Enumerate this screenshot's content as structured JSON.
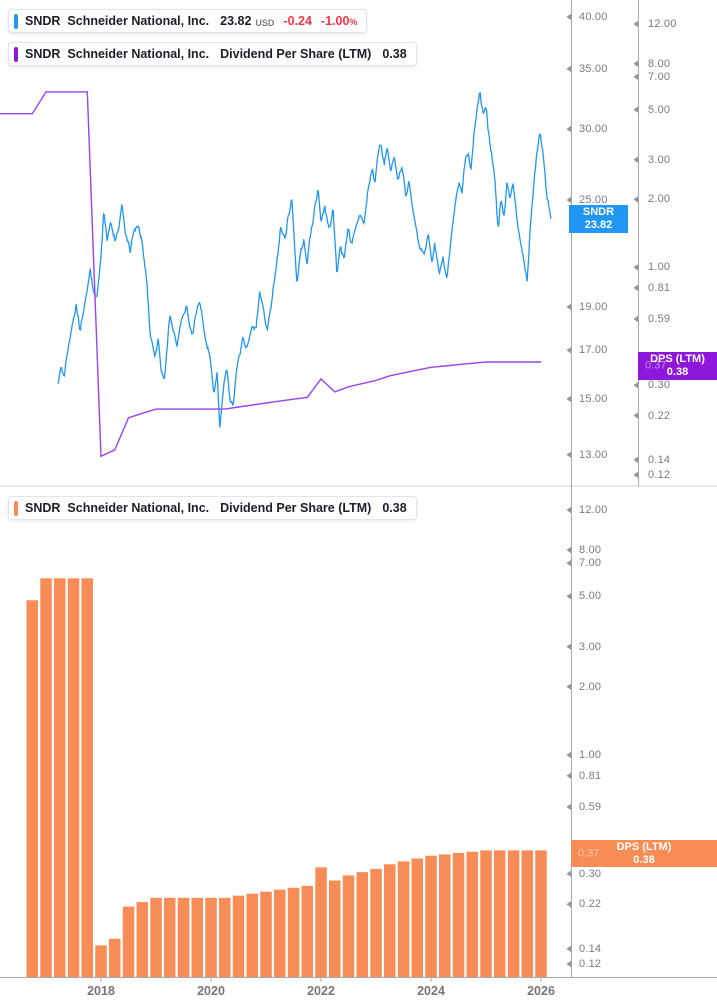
{
  "legend": {
    "price_row": {
      "ticker": "SNDR",
      "name": "Schneider National, Inc.",
      "price": "23.82",
      "currency": "USD",
      "change": "-0.24",
      "change_pct": "-1.00",
      "pct_sign": "%",
      "chip_color": "#2196f3"
    },
    "dps_row": {
      "ticker": "SNDR",
      "name": "Schneider National, Inc.",
      "metric": "Dividend Per Share (LTM)",
      "value": "0.38",
      "chip_color": "#8d17da"
    },
    "dps_panel_row": {
      "ticker": "SNDR",
      "name": "Schneider National, Inc.",
      "metric": "Dividend Per Share (LTM)",
      "value": "0.38",
      "chip_color": "#f88c56"
    }
  },
  "badges": {
    "price": {
      "line1": "SNDR",
      "line2": "23.82",
      "color": "#2196f3"
    },
    "dps_top": {
      "line1": "DPS (LTM)",
      "line2": "0.38",
      "hidden_tick": "0.37",
      "color": "#8d17da"
    },
    "dps_bottom": {
      "line1": "DPS (LTM)",
      "line2": "0.38",
      "hidden_tick": "0.37",
      "color": "#f88c56"
    }
  },
  "axes_labels": {
    "price": [
      "40.00",
      "35.00",
      "30.00",
      "25.00",
      "19.00",
      "17.00",
      "15.00",
      "13.00"
    ],
    "dps": [
      "12.00",
      "8.00",
      "7.00",
      "5.00",
      "3.00",
      "2.00",
      "1.00",
      "0.81",
      "0.59",
      "0.30",
      "0.22",
      "0.14",
      "0.12"
    ],
    "years": [
      "2018",
      "2020",
      "2022",
      "2024",
      "2026"
    ]
  },
  "chart_data": {
    "title": "SNDR Schneider National, Inc. price with Dividend Per Share (LTM)",
    "layout": "two stacked panels, log scales, legend pills top-left, white background, no gridlines",
    "x_axis": {
      "type": "time",
      "tick_years": [
        2018,
        2020,
        2022,
        2024,
        2026
      ]
    },
    "price_series": {
      "type": "line",
      "name": "SNDR price (USD)",
      "color": "#2196f3",
      "scale": "log",
      "axis_ticks": [
        40,
        35,
        30,
        25,
        19,
        17,
        15,
        13
      ],
      "last_price": 23.82,
      "change": -0.24,
      "change_pct": -1.0,
      "points": [
        [
          2017.22,
          15.6
        ],
        [
          2017.27,
          16.3
        ],
        [
          2017.33,
          15.8
        ],
        [
          2017.44,
          17.5
        ],
        [
          2017.55,
          18.9
        ],
        [
          2017.62,
          17.8
        ],
        [
          2017.73,
          19.8
        ],
        [
          2017.8,
          21.0
        ],
        [
          2017.87,
          19.9
        ],
        [
          2017.93,
          19.5
        ],
        [
          2018.0,
          21.8
        ],
        [
          2018.05,
          24.3
        ],
        [
          2018.11,
          22.3
        ],
        [
          2018.18,
          23.6
        ],
        [
          2018.25,
          22.6
        ],
        [
          2018.33,
          23.3
        ],
        [
          2018.38,
          24.8
        ],
        [
          2018.45,
          23.0
        ],
        [
          2018.53,
          22.0
        ],
        [
          2018.6,
          23.2
        ],
        [
          2018.67,
          23.5
        ],
        [
          2018.75,
          22.6
        ],
        [
          2018.84,
          20.2
        ],
        [
          2018.89,
          17.9
        ],
        [
          2018.98,
          16.6
        ],
        [
          2019.04,
          17.5
        ],
        [
          2019.09,
          16.2
        ],
        [
          2019.15,
          15.8
        ],
        [
          2019.2,
          17.0
        ],
        [
          2019.25,
          18.5
        ],
        [
          2019.33,
          17.9
        ],
        [
          2019.38,
          17.2
        ],
        [
          2019.47,
          18.4
        ],
        [
          2019.56,
          19.2
        ],
        [
          2019.62,
          18.0
        ],
        [
          2019.67,
          17.7
        ],
        [
          2019.75,
          19.0
        ],
        [
          2019.8,
          19.4
        ],
        [
          2019.89,
          17.8
        ],
        [
          2019.98,
          16.6
        ],
        [
          2020.05,
          15.2
        ],
        [
          2020.11,
          15.9
        ],
        [
          2020.16,
          13.9
        ],
        [
          2020.24,
          15.5
        ],
        [
          2020.29,
          16.2
        ],
        [
          2020.35,
          15.0
        ],
        [
          2020.4,
          14.7
        ],
        [
          2020.49,
          16.5
        ],
        [
          2020.58,
          17.7
        ],
        [
          2020.65,
          17.2
        ],
        [
          2020.75,
          18.3
        ],
        [
          2020.82,
          18.0
        ],
        [
          2020.89,
          19.6
        ],
        [
          2020.96,
          18.6
        ],
        [
          2021.02,
          17.7
        ],
        [
          2021.11,
          19.5
        ],
        [
          2021.2,
          21.5
        ],
        [
          2021.27,
          23.4
        ],
        [
          2021.35,
          22.4
        ],
        [
          2021.4,
          24.0
        ],
        [
          2021.47,
          25.0
        ],
        [
          2021.56,
          20.3
        ],
        [
          2021.62,
          21.8
        ],
        [
          2021.69,
          22.5
        ],
        [
          2021.75,
          21.2
        ],
        [
          2021.82,
          23.2
        ],
        [
          2021.89,
          24.5
        ],
        [
          2021.95,
          25.6
        ],
        [
          2022.0,
          23.5
        ],
        [
          2022.07,
          24.6
        ],
        [
          2022.15,
          23.2
        ],
        [
          2022.22,
          24.4
        ],
        [
          2022.29,
          20.5
        ],
        [
          2022.35,
          22.0
        ],
        [
          2022.42,
          21.3
        ],
        [
          2022.49,
          23.0
        ],
        [
          2022.56,
          22.1
        ],
        [
          2022.64,
          23.5
        ],
        [
          2022.71,
          24.2
        ],
        [
          2022.78,
          23.6
        ],
        [
          2022.85,
          25.8
        ],
        [
          2022.93,
          27.2
        ],
        [
          2022.98,
          26.0
        ],
        [
          2023.04,
          28.3
        ],
        [
          2023.09,
          29.0
        ],
        [
          2023.15,
          27.6
        ],
        [
          2023.2,
          28.6
        ],
        [
          2023.27,
          27.0
        ],
        [
          2023.33,
          28.0
        ],
        [
          2023.4,
          26.2
        ],
        [
          2023.47,
          27.3
        ],
        [
          2023.55,
          25.4
        ],
        [
          2023.6,
          26.6
        ],
        [
          2023.67,
          24.6
        ],
        [
          2023.73,
          23.4
        ],
        [
          2023.8,
          21.9
        ],
        [
          2023.87,
          21.5
        ],
        [
          2023.95,
          22.6
        ],
        [
          2024.02,
          21.3
        ],
        [
          2024.07,
          22.4
        ],
        [
          2024.15,
          20.8
        ],
        [
          2024.22,
          21.7
        ],
        [
          2024.29,
          20.6
        ],
        [
          2024.36,
          22.5
        ],
        [
          2024.44,
          24.5
        ],
        [
          2024.51,
          26.0
        ],
        [
          2024.56,
          25.2
        ],
        [
          2024.62,
          27.5
        ],
        [
          2024.67,
          27.9
        ],
        [
          2024.73,
          26.8
        ],
        [
          2024.78,
          29.5
        ],
        [
          2024.84,
          31.5
        ],
        [
          2024.89,
          33.2
        ],
        [
          2024.95,
          31.0
        ],
        [
          2025.0,
          31.8
        ],
        [
          2025.05,
          29.5
        ],
        [
          2025.11,
          27.7
        ],
        [
          2025.16,
          26.3
        ],
        [
          2025.22,
          23.1
        ],
        [
          2025.27,
          25.0
        ],
        [
          2025.33,
          24.0
        ],
        [
          2025.38,
          26.4
        ],
        [
          2025.44,
          25.2
        ],
        [
          2025.49,
          26.0
        ],
        [
          2025.55,
          24.2
        ],
        [
          2025.6,
          22.7
        ],
        [
          2025.67,
          21.6
        ],
        [
          2025.75,
          20.3
        ],
        [
          2025.8,
          23.1
        ],
        [
          2025.87,
          26.1
        ],
        [
          2025.93,
          28.3
        ],
        [
          2025.98,
          29.7
        ],
        [
          2026.04,
          27.9
        ],
        [
          2026.11,
          25.2
        ],
        [
          2026.18,
          23.82
        ]
      ]
    },
    "dps_series": {
      "type": "line_and_bar",
      "name": "Dividend Per Share (LTM)",
      "line_color": "#9a43ef",
      "bar_color": "#f88c56",
      "scale": "log",
      "axis_ticks": [
        12,
        8,
        7,
        5,
        3,
        2,
        1,
        0.81,
        0.59,
        0.3,
        0.22,
        0.14,
        0.12
      ],
      "last_value": 0.38,
      "lead_in": {
        "quarters": [
          "2016Q1",
          "2016Q2"
        ],
        "values": [
          4.8,
          4.8
        ]
      },
      "quarters": [
        "2016Q3",
        "2016Q4",
        "2017Q1",
        "2017Q2",
        "2017Q3",
        "2017Q4",
        "2018Q1",
        "2018Q2",
        "2018Q3",
        "2018Q4",
        "2019Q1",
        "2019Q2",
        "2019Q3",
        "2019Q4",
        "2020Q1",
        "2020Q2",
        "2020Q3",
        "2020Q4",
        "2021Q1",
        "2021Q2",
        "2021Q3",
        "2021Q4",
        "2022Q1",
        "2022Q2",
        "2022Q3",
        "2022Q4",
        "2023Q1",
        "2023Q2",
        "2023Q3",
        "2023Q4",
        "2024Q1",
        "2024Q2",
        "2024Q3",
        "2024Q4",
        "2025Q1",
        "2025Q2",
        "2025Q3",
        "2025Q4"
      ],
      "values": [
        4.8,
        6.0,
        6.0,
        6.0,
        6.0,
        0.145,
        0.155,
        0.215,
        0.225,
        0.235,
        0.235,
        0.235,
        0.235,
        0.235,
        0.235,
        0.24,
        0.245,
        0.25,
        0.255,
        0.26,
        0.265,
        0.32,
        0.28,
        0.295,
        0.305,
        0.315,
        0.33,
        0.34,
        0.35,
        0.36,
        0.365,
        0.37,
        0.375,
        0.38,
        0.38,
        0.38,
        0.38,
        0.38
      ]
    }
  }
}
